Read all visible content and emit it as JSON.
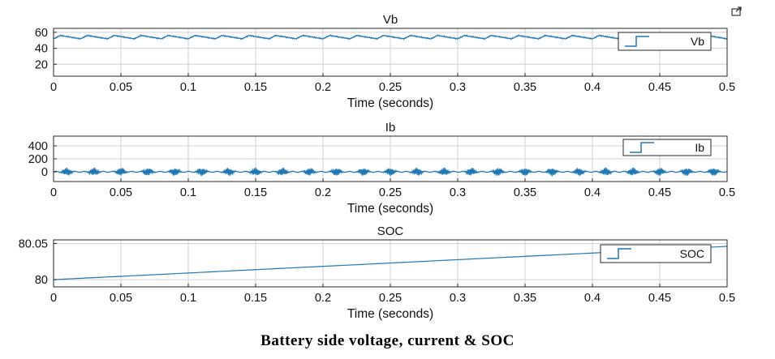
{
  "caption": "Battery side voltage, current & SOC",
  "colors": {
    "line": "#1f77b4",
    "axis": "#262626",
    "grid": "#d0d0d0",
    "background": "#ffffff"
  },
  "chart_data": [
    {
      "type": "line",
      "title": "Vb",
      "xlabel": "Time (seconds)",
      "ylabel": "",
      "xlim": [
        0,
        0.5
      ],
      "ylim": [
        5,
        65
      ],
      "xticks": [
        0,
        0.05,
        0.1,
        0.15,
        0.2,
        0.25,
        0.3,
        0.35,
        0.4,
        0.45,
        0.5
      ],
      "xtick_labels": [
        "0",
        "0.05",
        "0.1",
        "0.15",
        "0.2",
        "0.25",
        "0.3",
        "0.35",
        "0.4",
        "0.45",
        "0.5"
      ],
      "yticks": [
        20,
        40,
        60
      ],
      "ytick_labels": [
        "20",
        "40",
        "60"
      ],
      "grid": true,
      "legend": "right",
      "series": [
        {
          "name": "Vb",
          "signal": "ripple",
          "mean": 54,
          "amplitude": 3,
          "ripple_period": 0.02,
          "x": [
            0,
            0.1,
            0.2,
            0.3,
            0.4,
            0.5
          ],
          "y": [
            54,
            54,
            54,
            54,
            53,
            55
          ]
        }
      ]
    },
    {
      "type": "line",
      "title": "Ib",
      "xlabel": "Time (seconds)",
      "ylabel": "",
      "xlim": [
        0,
        0.5
      ],
      "ylim": [
        -150,
        550
      ],
      "xticks": [
        0,
        0.05,
        0.1,
        0.15,
        0.2,
        0.25,
        0.3,
        0.35,
        0.4,
        0.45,
        0.5
      ],
      "xtick_labels": [
        "0",
        "0.05",
        "0.1",
        "0.15",
        "0.2",
        "0.25",
        "0.3",
        "0.35",
        "0.4",
        "0.45",
        "0.5"
      ],
      "yticks": [
        0,
        200,
        400
      ],
      "ytick_labels": [
        "0",
        "200",
        "400"
      ],
      "grid": true,
      "legend": "top-right",
      "series": [
        {
          "name": "Ib",
          "signal": "bursts",
          "mean": 0,
          "amplitude": 60,
          "burst_period": 0.02,
          "x": [
            0,
            0.1,
            0.2,
            0.3,
            0.4,
            0.5
          ],
          "y": [
            0,
            0,
            0,
            0,
            0,
            0
          ]
        }
      ]
    },
    {
      "type": "line",
      "title": "SOC",
      "xlabel": "Time (seconds)",
      "ylabel": "",
      "xlim": [
        0,
        0.5
      ],
      "ylim": [
        79.99,
        80.055
      ],
      "xticks": [
        0,
        0.05,
        0.1,
        0.15,
        0.2,
        0.25,
        0.3,
        0.35,
        0.4,
        0.45,
        0.5
      ],
      "xtick_labels": [
        "0",
        "0.05",
        "0.1",
        "0.15",
        "0.2",
        "0.25",
        "0.3",
        "0.35",
        "0.4",
        "0.45",
        "0.5"
      ],
      "yticks": [
        80,
        80.05
      ],
      "ytick_labels": [
        "80",
        "80.05"
      ],
      "grid": true,
      "legend": "top-right",
      "series": [
        {
          "name": "SOC",
          "signal": "linear",
          "x": [
            0,
            0.1,
            0.2,
            0.3,
            0.4,
            0.5
          ],
          "y": [
            80.0,
            80.0092,
            80.0184,
            80.0276,
            80.0368,
            80.046
          ]
        }
      ]
    }
  ]
}
